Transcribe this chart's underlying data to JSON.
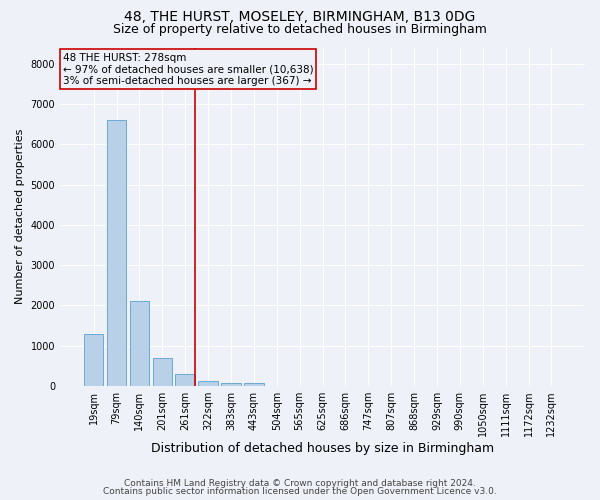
{
  "title": "48, THE HURST, MOSELEY, BIRMINGHAM, B13 0DG",
  "subtitle": "Size of property relative to detached houses in Birmingham",
  "xlabel": "Distribution of detached houses by size in Birmingham",
  "ylabel": "Number of detached properties",
  "footer1": "Contains HM Land Registry data © Crown copyright and database right 2024.",
  "footer2": "Contains public sector information licensed under the Open Government Licence v3.0.",
  "bin_labels": [
    "19sqm",
    "79sqm",
    "140sqm",
    "201sqm",
    "261sqm",
    "322sqm",
    "383sqm",
    "443sqm",
    "504sqm",
    "565sqm",
    "625sqm",
    "686sqm",
    "747sqm",
    "807sqm",
    "868sqm",
    "929sqm",
    "990sqm",
    "1050sqm",
    "1111sqm",
    "1172sqm",
    "1232sqm"
  ],
  "bar_values": [
    1300,
    6600,
    2100,
    700,
    300,
    130,
    80,
    70,
    0,
    0,
    0,
    0,
    0,
    0,
    0,
    0,
    0,
    0,
    0,
    0,
    0
  ],
  "bar_color": "#b8d0e8",
  "bar_edge_color": "#6aaad4",
  "property_line_x": 4.42,
  "annotation_text_line1": "48 THE HURST: 278sqm",
  "annotation_text_line2": "← 97% of detached houses are smaller (10,638)",
  "annotation_text_line3": "3% of semi-detached houses are larger (367) →",
  "annotation_box_color": "#cc0000",
  "ylim": [
    0,
    8400
  ],
  "yticks": [
    0,
    1000,
    2000,
    3000,
    4000,
    5000,
    6000,
    7000,
    8000
  ],
  "background_color": "#eef2f8",
  "grid_color": "#ffffff",
  "title_fontsize": 10,
  "subtitle_fontsize": 9,
  "annotation_fontsize": 7.5,
  "ylabel_fontsize": 8,
  "xlabel_fontsize": 9,
  "tick_fontsize": 7,
  "footer_fontsize": 6.5
}
